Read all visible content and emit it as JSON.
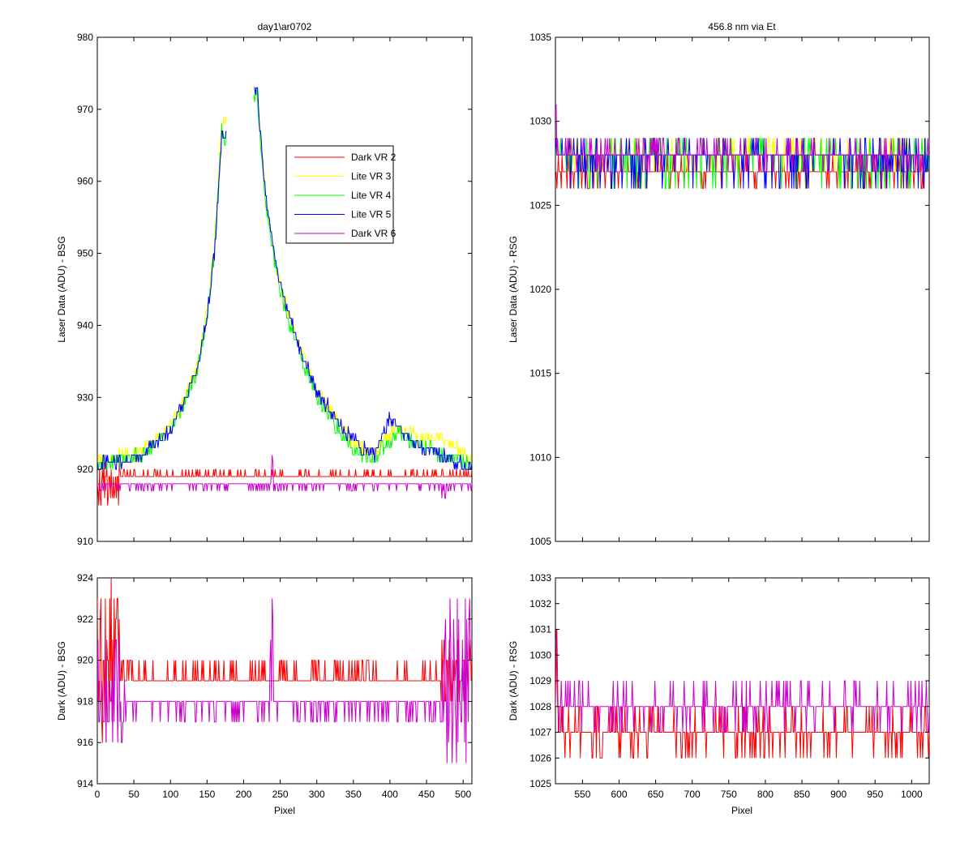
{
  "figure": {
    "background": "#ffffff"
  },
  "chart_data": [
    {
      "id": "bsg-laser",
      "type": "line",
      "title": "day1\\ar0702",
      "xlabel": "",
      "ylabel": "Laser Data (ADU) - BSG",
      "xlim": [
        0,
        512
      ],
      "ylim": [
        910,
        980
      ],
      "xticks": [
        0,
        50,
        100,
        150,
        200,
        250,
        300,
        350,
        400,
        450,
        500
      ],
      "yticks": [
        910,
        920,
        930,
        940,
        950,
        960,
        970,
        980
      ],
      "show_xtick_labels": false,
      "legend": {
        "placement": "inside-top-right",
        "entries": [
          "Dark VR 2",
          "Lite VR 3",
          "Lite VR 4",
          "Lite VR 5",
          "Dark VR 6"
        ]
      },
      "series": [
        {
          "name": "Dark VR 2",
          "color": "#ff0000",
          "kind": "noise",
          "x_range": [
            0,
            512
          ],
          "base": 919,
          "levels": [
            919,
            920
          ],
          "extra": [
            [
              0,
              30,
              915,
              921
            ]
          ]
        },
        {
          "name": "Lite VR 3",
          "color": "#ffff00",
          "kind": "peak",
          "points": [
            [
              0,
              921
            ],
            [
              20,
              921.5
            ],
            [
              40,
              922
            ],
            [
              60,
              922.5
            ],
            [
              80,
              924
            ],
            [
              100,
              926
            ],
            [
              120,
              930
            ],
            [
              135,
              934
            ],
            [
              150,
              942
            ],
            [
              160,
              951
            ],
            [
              170,
              968
            ],
            [
              175,
              968
            ],
            [
              218,
              973
            ],
            [
              230,
              958
            ],
            [
              245,
              948
            ],
            [
              260,
              942
            ],
            [
              280,
              936
            ],
            [
              300,
              931
            ],
            [
              320,
              928
            ],
            [
              340,
              925
            ],
            [
              360,
              923
            ],
            [
              380,
              922
            ],
            [
              390,
              924
            ],
            [
              410,
              926
            ],
            [
              430,
              925
            ],
            [
              450,
              924
            ],
            [
              470,
              924
            ],
            [
              490,
              923
            ],
            [
              512,
              921
            ]
          ]
        },
        {
          "name": "Lite VR 4",
          "color": "#00ff00",
          "kind": "peak",
          "points": [
            [
              0,
              920.5
            ],
            [
              20,
              921
            ],
            [
              40,
              921.5
            ],
            [
              60,
              922
            ],
            [
              80,
              923.5
            ],
            [
              100,
              925.5
            ],
            [
              120,
              929
            ],
            [
              135,
              933
            ],
            [
              150,
              941
            ],
            [
              160,
              950
            ],
            [
              170,
              967
            ],
            [
              175,
              966
            ],
            [
              218,
              972
            ],
            [
              230,
              957
            ],
            [
              245,
              947
            ],
            [
              260,
              941
            ],
            [
              280,
              935
            ],
            [
              300,
              930
            ],
            [
              320,
              927
            ],
            [
              340,
              924
            ],
            [
              360,
              922
            ],
            [
              380,
              921.5
            ],
            [
              390,
              923
            ],
            [
              410,
              925
            ],
            [
              430,
              924
            ],
            [
              450,
              923
            ],
            [
              470,
              922
            ],
            [
              490,
              921.5
            ],
            [
              512,
              920.5
            ]
          ]
        },
        {
          "name": "Lite VR 5",
          "color": "#0000ff",
          "kind": "peak",
          "points": [
            [
              0,
              921
            ],
            [
              20,
              921
            ],
            [
              40,
              921.5
            ],
            [
              60,
              922
            ],
            [
              80,
              923.5
            ],
            [
              100,
              925.5
            ],
            [
              120,
              929.5
            ],
            [
              135,
              933.5
            ],
            [
              150,
              941
            ],
            [
              160,
              950
            ],
            [
              170,
              966
            ],
            [
              175,
              966
            ],
            [
              218,
              973
            ],
            [
              230,
              958
            ],
            [
              245,
              948
            ],
            [
              260,
              942
            ],
            [
              280,
              936
            ],
            [
              300,
              931
            ],
            [
              320,
              928
            ],
            [
              340,
              925
            ],
            [
              360,
              923
            ],
            [
              380,
              922
            ],
            [
              400,
              927
            ],
            [
              410,
              926
            ],
            [
              430,
              924
            ],
            [
              450,
              923
            ],
            [
              470,
              922
            ],
            [
              490,
              921
            ],
            [
              512,
              920
            ]
          ]
        },
        {
          "name": "Dark VR 6",
          "color": "#cc00cc",
          "kind": "noise",
          "x_range": [
            0,
            512
          ],
          "base": 918,
          "levels": [
            917,
            918
          ],
          "extra": [
            [
              238,
              240,
              918,
              923
            ],
            [
              470,
              478,
              915,
              919
            ]
          ]
        }
      ]
    },
    {
      "id": "rsg-laser",
      "type": "line",
      "title": "456.8 nm via Et",
      "xlabel": "",
      "ylabel": "Laser Data (ADU) - RSG",
      "xlim": [
        513,
        1024
      ],
      "ylim": [
        1005,
        1035
      ],
      "xticks": [
        550,
        600,
        650,
        700,
        750,
        800,
        850,
        900,
        950,
        1000
      ],
      "yticks": [
        1005,
        1010,
        1015,
        1020,
        1025,
        1030,
        1035
      ],
      "show_xtick_labels": false,
      "series": [
        {
          "name": "Dark VR 2",
          "color": "#ff0000",
          "kind": "noise",
          "x_range": [
            513,
            1024
          ],
          "base": 1027,
          "levels": [
            1026,
            1027,
            1028
          ]
        },
        {
          "name": "Lite VR 3",
          "color": "#ffff00",
          "kind": "noise",
          "x_range": [
            513,
            1024
          ],
          "base": 1028,
          "levels": [
            1027,
            1028,
            1029
          ]
        },
        {
          "name": "Lite VR 4",
          "color": "#00ff00",
          "kind": "noise",
          "x_range": [
            513,
            1024
          ],
          "base": 1028,
          "levels": [
            1026,
            1027,
            1028,
            1029
          ]
        },
        {
          "name": "Lite VR 5",
          "color": "#0000ff",
          "kind": "noise",
          "x_range": [
            513,
            1024
          ],
          "base": 1028,
          "levels": [
            1026,
            1027,
            1028,
            1029
          ]
        },
        {
          "name": "Dark VR 6",
          "color": "#cc00cc",
          "kind": "noise",
          "x_range": [
            513,
            1024
          ],
          "base": 1028,
          "levels": [
            1027,
            1028,
            1029
          ],
          "extra": [
            [
              513,
              516,
              1028,
              1032
            ]
          ]
        }
      ]
    },
    {
      "id": "bsg-dark",
      "type": "line",
      "title": "",
      "xlabel": "Pixel",
      "ylabel": "Dark (ADU) - BSG",
      "xlim": [
        0,
        512
      ],
      "ylim": [
        914,
        924
      ],
      "xticks": [
        0,
        50,
        100,
        150,
        200,
        250,
        300,
        350,
        400,
        450,
        500
      ],
      "yticks": [
        914,
        916,
        918,
        920,
        922,
        924
      ],
      "show_xtick_labels": true,
      "series": [
        {
          "name": "Dark VR 2",
          "color": "#ff0000",
          "kind": "noise",
          "x_range": [
            0,
            512
          ],
          "base": 919,
          "levels": [
            919,
            920
          ],
          "extra": [
            [
              0,
              30,
              915,
              924
            ],
            [
              470,
              512,
              918,
              921
            ]
          ]
        },
        {
          "name": "Dark VR 6",
          "color": "#cc00cc",
          "kind": "noise",
          "x_range": [
            0,
            512
          ],
          "base": 918,
          "levels": [
            917,
            918
          ],
          "extra": [
            [
              0,
              40,
              916,
              921
            ],
            [
              236,
              240,
              918,
              923
            ],
            [
              470,
              512,
              915,
              923
            ]
          ]
        }
      ]
    },
    {
      "id": "rsg-dark",
      "type": "line",
      "title": "",
      "xlabel": "Pixel",
      "ylabel": "Dark (ADU) - RSG",
      "xlim": [
        513,
        1024
      ],
      "ylim": [
        1025,
        1033
      ],
      "xticks": [
        550,
        600,
        650,
        700,
        750,
        800,
        850,
        900,
        950,
        1000
      ],
      "yticks": [
        1025,
        1026,
        1027,
        1028,
        1029,
        1030,
        1031,
        1032,
        1033
      ],
      "show_xtick_labels": true,
      "series": [
        {
          "name": "Dark VR 2",
          "color": "#ff0000",
          "kind": "noise",
          "x_range": [
            513,
            1024
          ],
          "base": 1027,
          "levels": [
            1026,
            1027,
            1028
          ],
          "extra": [
            [
              513,
              516,
              1027,
              1032
            ]
          ]
        },
        {
          "name": "Dark VR 6",
          "color": "#cc00cc",
          "kind": "noise",
          "x_range": [
            513,
            1024
          ],
          "base": 1028,
          "levels": [
            1027,
            1028,
            1029
          ],
          "extra": [
            [
              513,
              518,
              1027,
              1031
            ]
          ]
        }
      ]
    }
  ]
}
